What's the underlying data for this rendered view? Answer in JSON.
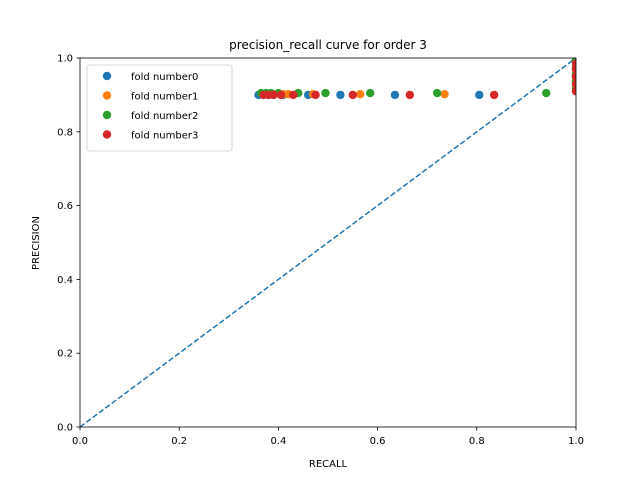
{
  "chart_data": {
    "type": "scatter",
    "title": "precision_recall curve for order 3",
    "xlabel": "RECALL",
    "ylabel": "PRECISION",
    "xlim": [
      0,
      1
    ],
    "ylim": [
      0,
      1
    ],
    "xticks": [
      "0.0",
      "0.2",
      "0.4",
      "0.6",
      "0.8",
      "1.0"
    ],
    "yticks": [
      "0.0",
      "0.2",
      "0.4",
      "0.6",
      "0.8",
      "1.0"
    ],
    "grid": false,
    "legend_position": "upper-left",
    "reference_line": {
      "style": "dashed",
      "from": [
        0,
        0
      ],
      "to": [
        1,
        1
      ],
      "color": "#1f77b4"
    },
    "series": [
      {
        "name": "fold number0",
        "color": "#1f77b4",
        "points": [
          [
            0.36,
            0.9
          ],
          [
            0.37,
            0.9
          ],
          [
            0.38,
            0.9
          ],
          [
            0.39,
            0.9
          ],
          [
            0.41,
            0.9
          ],
          [
            0.46,
            0.9
          ],
          [
            0.525,
            0.9
          ],
          [
            0.635,
            0.9
          ],
          [
            0.805,
            0.9
          ],
          [
            1.0,
            0.91
          ],
          [
            1.0,
            0.93
          ],
          [
            1.0,
            0.95
          ],
          [
            1.0,
            0.97
          ],
          [
            1.0,
            0.99
          ]
        ]
      },
      {
        "name": "fold number1",
        "color": "#ff7f0e",
        "points": [
          [
            0.37,
            0.902
          ],
          [
            0.39,
            0.902
          ],
          [
            0.41,
            0.902
          ],
          [
            0.42,
            0.902
          ],
          [
            0.47,
            0.902
          ],
          [
            0.565,
            0.902
          ],
          [
            0.735,
            0.902
          ],
          [
            1.0,
            0.92
          ],
          [
            1.0,
            0.94
          ],
          [
            1.0,
            0.96
          ],
          [
            1.0,
            0.98
          ],
          [
            1.0,
            1.0
          ]
        ]
      },
      {
        "name": "fold number2",
        "color": "#2ca02c",
        "points": [
          [
            0.365,
            0.905
          ],
          [
            0.375,
            0.905
          ],
          [
            0.385,
            0.905
          ],
          [
            0.4,
            0.905
          ],
          [
            0.44,
            0.905
          ],
          [
            0.495,
            0.905
          ],
          [
            0.585,
            0.905
          ],
          [
            0.72,
            0.905
          ],
          [
            0.94,
            0.905
          ],
          [
            1.0,
            0.915
          ],
          [
            1.0,
            0.935
          ],
          [
            1.0,
            0.955
          ],
          [
            1.0,
            0.975
          ],
          [
            1.0,
            0.995
          ]
        ]
      },
      {
        "name": "fold number3",
        "color": "#d62728",
        "points": [
          [
            0.37,
            0.9
          ],
          [
            0.38,
            0.9
          ],
          [
            0.39,
            0.9
          ],
          [
            0.405,
            0.9
          ],
          [
            0.43,
            0.9
          ],
          [
            0.475,
            0.9
          ],
          [
            0.55,
            0.9
          ],
          [
            0.665,
            0.9
          ],
          [
            0.835,
            0.9
          ],
          [
            1.0,
            0.91
          ],
          [
            1.0,
            0.93
          ],
          [
            1.0,
            0.95
          ],
          [
            1.0,
            0.97
          ],
          [
            1.0,
            0.985
          ]
        ]
      }
    ]
  }
}
